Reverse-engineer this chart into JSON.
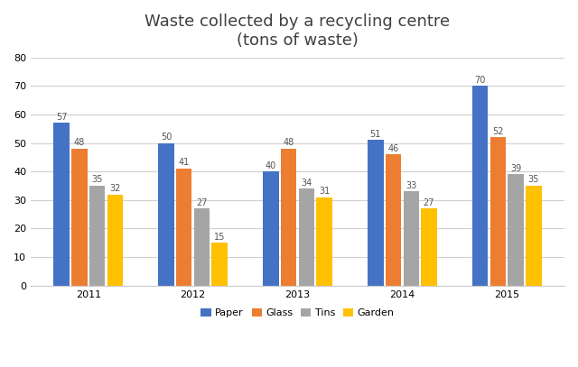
{
  "title": "Waste collected by a recycling centre\n(tons of waste)",
  "years": [
    "2011",
    "2012",
    "2013",
    "2014",
    "2015"
  ],
  "categories": [
    "Paper",
    "Glass",
    "Tins",
    "Garden"
  ],
  "values": {
    "Paper": [
      57,
      50,
      40,
      51,
      70
    ],
    "Glass": [
      48,
      41,
      48,
      46,
      52
    ],
    "Tins": [
      35,
      27,
      34,
      33,
      39
    ],
    "Garden": [
      32,
      15,
      31,
      27,
      35
    ]
  },
  "colors": {
    "Paper": "#4472c4",
    "Glass": "#ed7d31",
    "Tins": "#a5a5a5",
    "Garden": "#ffc000"
  },
  "ylim": [
    0,
    80
  ],
  "yticks": [
    0,
    10,
    20,
    30,
    40,
    50,
    60,
    70,
    80
  ],
  "bar_width": 0.15,
  "title_fontsize": 13,
  "label_fontsize": 7,
  "tick_fontsize": 8,
  "legend_fontsize": 8,
  "background_color": "#ffffff",
  "grid_color": "#d0d0d0",
  "title_color": "#404040"
}
